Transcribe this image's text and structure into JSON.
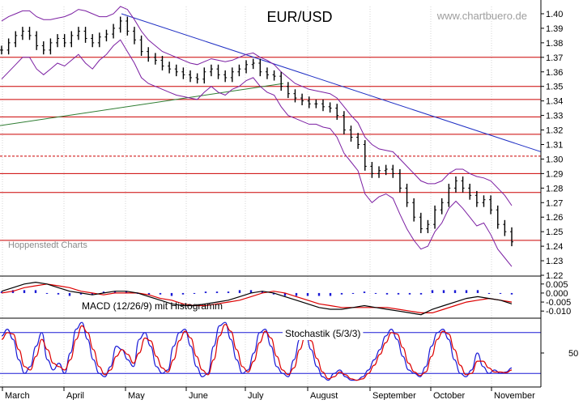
{
  "colors": {
    "background": "#ffffff",
    "price": "#000000",
    "bollinger": "#7b1fa2",
    "horizontal_lines": "#cc0000",
    "trend_down": "#1f2fc4",
    "trend_up": "#2e7d32",
    "macd_line": "#000000",
    "signal_line": "#dd0000",
    "histogram": "#1a1ad6",
    "stoch_k": "#1a1ad6",
    "stoch_d": "#dd0000",
    "stoch_band": "#1a1ad6",
    "axis": "#000000"
  },
  "chart_data": [
    {
      "type": "line",
      "title": "EUR/USD",
      "watermark": "www.chartbuero.de",
      "source_note": "Hoppenstedt Charts",
      "ylim": [
        1.22,
        1.405
      ],
      "yticks": [
        "1.40",
        "1.39",
        "1.38",
        "1.37",
        "1.36",
        "1.35",
        "1.34",
        "1.33",
        "1.32",
        "1.31",
        "1.30",
        "1.29",
        "1.28",
        "1.27",
        "1.26",
        "1.25",
        "1.24",
        "1.23",
        "1.22"
      ],
      "month_labels": [
        "March",
        "April",
        "May",
        "June",
        "July",
        "August",
        "September",
        "October",
        "November"
      ],
      "support_resistance_levels": [
        1.37,
        1.35,
        1.341,
        1.329,
        1.317,
        1.302,
        1.29,
        1.277,
        1.244
      ],
      "dashed_level": 1.302,
      "price_close": [
        1.375,
        1.38,
        1.385,
        1.388,
        1.385,
        1.378,
        1.375,
        1.38,
        1.383,
        1.38,
        1.385,
        1.388,
        1.383,
        1.38,
        1.384,
        1.386,
        1.39,
        1.395,
        1.388,
        1.382,
        1.374,
        1.37,
        1.368,
        1.364,
        1.362,
        1.36,
        1.358,
        1.356,
        1.355,
        1.36,
        1.362,
        1.358,
        1.356,
        1.36,
        1.362,
        1.365,
        1.366,
        1.36,
        1.358,
        1.357,
        1.35,
        1.345,
        1.342,
        1.34,
        1.338,
        1.338,
        1.336,
        1.335,
        1.33,
        1.32,
        1.315,
        1.31,
        1.295,
        1.29,
        1.292,
        1.293,
        1.29,
        1.28,
        1.27,
        1.26,
        1.252,
        1.255,
        1.265,
        1.27,
        1.28,
        1.285,
        1.28,
        1.275,
        1.27,
        1.272,
        1.265,
        1.255,
        1.25,
        1.243
      ],
      "bollinger_upper": [
        1.395,
        1.398,
        1.4,
        1.402,
        1.402,
        1.398,
        1.396,
        1.396,
        1.397,
        1.398,
        1.4,
        1.403,
        1.402,
        1.4,
        1.398,
        1.398,
        1.4,
        1.405,
        1.403,
        1.396,
        1.388,
        1.382,
        1.378,
        1.374,
        1.372,
        1.37,
        1.368,
        1.366,
        1.365,
        1.367,
        1.369,
        1.368,
        1.367,
        1.368,
        1.37,
        1.372,
        1.373,
        1.37,
        1.368,
        1.365,
        1.36,
        1.356,
        1.352,
        1.35,
        1.348,
        1.347,
        1.346,
        1.345,
        1.342,
        1.336,
        1.33,
        1.325,
        1.315,
        1.31,
        1.307,
        1.306,
        1.305,
        1.3,
        1.295,
        1.29,
        1.285,
        1.283,
        1.283,
        1.285,
        1.29,
        1.293,
        1.293,
        1.29,
        1.288,
        1.287,
        1.285,
        1.28,
        1.275,
        1.268
      ],
      "bollinger_lower": [
        1.355,
        1.36,
        1.365,
        1.37,
        1.37,
        1.362,
        1.358,
        1.362,
        1.366,
        1.364,
        1.368,
        1.372,
        1.366,
        1.362,
        1.368,
        1.372,
        1.378,
        1.382,
        1.374,
        1.366,
        1.356,
        1.352,
        1.35,
        1.348,
        1.346,
        1.344,
        1.343,
        1.342,
        1.341,
        1.346,
        1.35,
        1.346,
        1.344,
        1.348,
        1.35,
        1.354,
        1.356,
        1.35,
        1.346,
        1.344,
        1.336,
        1.33,
        1.328,
        1.326,
        1.324,
        1.324,
        1.322,
        1.321,
        1.315,
        1.304,
        1.298,
        1.292,
        1.276,
        1.27,
        1.274,
        1.276,
        1.273,
        1.262,
        1.252,
        1.244,
        1.238,
        1.24,
        1.25,
        1.256,
        1.266,
        1.271,
        1.266,
        1.26,
        1.254,
        1.256,
        1.248,
        1.238,
        1.232,
        1.226
      ],
      "trendlines": [
        {
          "name": "downtrend",
          "from_price": 1.4,
          "to_price": 1.305
        },
        {
          "name": "uptrend",
          "from_price": 1.323,
          "to_price": 1.352
        }
      ]
    },
    {
      "type": "line",
      "label": "MACD (12/26/9) mit Histogramm",
      "ylim": [
        -0.0135,
        0.0085
      ],
      "yticks": [
        "0.005",
        "0.000",
        "-0.005",
        "-0.010"
      ],
      "macd": [
        0.001,
        0.003,
        0.005,
        0.006,
        0.005,
        0.003,
        0.001,
        0.0,
        -0.001,
        0.0,
        0.001,
        0.001,
        0.0,
        -0.002,
        -0.004,
        -0.006,
        -0.007,
        -0.007,
        -0.006,
        -0.005,
        -0.004,
        -0.002,
        0.0,
        0.001,
        0.0,
        -0.002,
        -0.004,
        -0.006,
        -0.008,
        -0.009,
        -0.009,
        -0.008,
        -0.007,
        -0.008,
        -0.009,
        -0.01,
        -0.011,
        -0.012,
        -0.009,
        -0.007,
        -0.005,
        -0.003,
        -0.002,
        -0.003,
        -0.004,
        -0.006
      ],
      "signal": [
        0.0,
        0.001,
        0.003,
        0.004,
        0.005,
        0.004,
        0.003,
        0.001,
        0.0,
        -0.001,
        0.0,
        0.0,
        0.0,
        -0.001,
        -0.003,
        -0.004,
        -0.006,
        -0.007,
        -0.007,
        -0.006,
        -0.005,
        -0.004,
        -0.002,
        0.0,
        0.001,
        0.0,
        -0.002,
        -0.004,
        -0.006,
        -0.007,
        -0.008,
        -0.008,
        -0.008,
        -0.008,
        -0.008,
        -0.009,
        -0.01,
        -0.011,
        -0.011,
        -0.009,
        -0.007,
        -0.005,
        -0.004,
        -0.003,
        -0.004,
        -0.005
      ]
    },
    {
      "type": "line",
      "label": "Stochastik (5/3/3)",
      "ylim": [
        0,
        100
      ],
      "yticks": [
        "50"
      ],
      "bands": [
        80,
        20
      ],
      "k": [
        75,
        85,
        70,
        40,
        20,
        30,
        60,
        80,
        40,
        25,
        35,
        20,
        50,
        85,
        95,
        70,
        40,
        20,
        15,
        30,
        60,
        55,
        40,
        30,
        70,
        80,
        60,
        30,
        20,
        25,
        60,
        80,
        85,
        60,
        30,
        15,
        20,
        60,
        90,
        95,
        70,
        40,
        20,
        25,
        50,
        80,
        85,
        60,
        30,
        20,
        15,
        40,
        70,
        80,
        55,
        30,
        15,
        10,
        20,
        25,
        15,
        10,
        10,
        15,
        25,
        40,
        55,
        75,
        85,
        70,
        45,
        25,
        20,
        15,
        30,
        60,
        80,
        85,
        70,
        40,
        20,
        15,
        25,
        50,
        30,
        20,
        25,
        20,
        22,
        28
      ],
      "d": [
        70,
        80,
        78,
        55,
        30,
        25,
        45,
        70,
        55,
        35,
        30,
        25,
        40,
        70,
        90,
        80,
        55,
        30,
        18,
        25,
        45,
        55,
        48,
        35,
        50,
        72,
        68,
        45,
        28,
        22,
        40,
        68,
        82,
        72,
        45,
        25,
        18,
        40,
        75,
        92,
        82,
        55,
        30,
        22,
        38,
        65,
        82,
        72,
        45,
        25,
        18,
        28,
        55,
        75,
        68,
        42,
        22,
        12,
        15,
        22,
        18,
        12,
        10,
        12,
        20,
        32,
        48,
        65,
        80,
        78,
        58,
        35,
        22,
        17,
        22,
        45,
        70,
        82,
        78,
        55,
        32,
        18,
        20,
        38,
        38,
        28,
        22,
        22,
        21,
        25
      ]
    }
  ]
}
